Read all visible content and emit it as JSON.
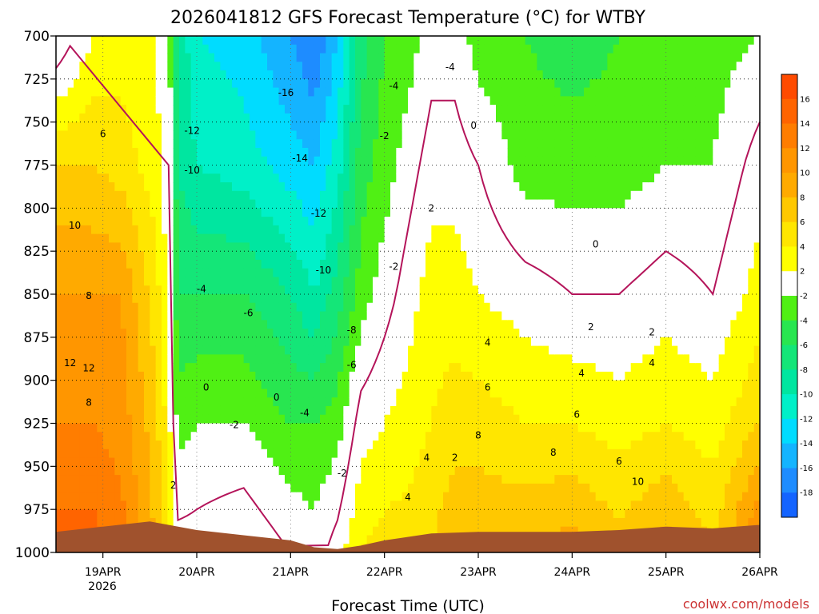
{
  "chart_data": {
    "type": "heatmap",
    "title": "2026041812 GFS Forecast Temperature (°C) for WTBY",
    "xlabel": "Forecast Time (UTC)",
    "ylabel": "",
    "credit": "coolwx.com/models",
    "x_ticks": [
      "19APR",
      "20APR",
      "21APR",
      "22APR",
      "23APR",
      "24APR",
      "25APR",
      "26APR"
    ],
    "x_year": "2026",
    "x_range_days": [
      18.5,
      26.0
    ],
    "y_ticks": [
      700,
      725,
      750,
      775,
      800,
      825,
      850,
      875,
      900,
      925,
      950,
      975,
      1000
    ],
    "y_range_hpa": [
      700,
      1000
    ],
    "colorbar_levels": [
      "16",
      "14",
      "12",
      "10",
      "8",
      "6",
      "4",
      "2",
      "-2",
      "-4",
      "-6",
      "-8",
      "-10",
      "-12",
      "-14",
      "-16",
      "-18"
    ],
    "colorbar_bounds": [
      18,
      16,
      14,
      12,
      10,
      8,
      6,
      4,
      2,
      -2,
      -4,
      -6,
      -8,
      -10,
      -12,
      -14,
      -16,
      -18,
      -20
    ],
    "colors": {
      "-20": "#1464ff",
      "-18": "#1e8cff",
      "-16": "#14b4ff",
      "-14": "#00dcff",
      "-12": "#00f0c8",
      "-10": "#00e6a0",
      "-8": "#14e678",
      "-6": "#28e650",
      "-4": "#50f014",
      "-2": "#ffffff",
      "2": "#ffff00",
      "4": "#ffe600",
      "6": "#ffc800",
      "8": "#ffaa00",
      "10": "#ff9600",
      "12": "#ff7d00",
      "14": "#ff6400",
      "16": "#ff4b00",
      "terrain": "#a0522d",
      "freezing_line": "#b4145a"
    },
    "profiles": [
      {
        "day": 18.5,
        "temps": [
          -2.0,
          6.0,
          10.0,
          12.0,
          15.0
        ]
      },
      {
        "day": 18.9,
        "temps": [
          2.0,
          6.0,
          10.0,
          12.0,
          15.0
        ]
      },
      {
        "day": 19.2,
        "temps": [
          3.0,
          5.0,
          10.0,
          11.0,
          13.0
        ]
      },
      {
        "day": 19.55,
        "temps": [
          3.0,
          3.0,
          5.0,
          7.0,
          8.0
        ]
      },
      {
        "day": 19.7,
        "temps": [
          -1.0,
          0.0,
          2.0,
          3.0,
          4.0
        ]
      },
      {
        "day": 19.8,
        "temps": [
          -8.0,
          -8.0,
          -6.0,
          -3.0,
          1.0
        ]
      },
      {
        "day": 20.0,
        "temps": [
          -12.0,
          -10.0,
          -6.0,
          -2.0,
          1.0
        ]
      },
      {
        "day": 20.5,
        "temps": [
          -13.0,
          -11.0,
          -6.0,
          -2.0,
          2.0
        ]
      },
      {
        "day": 21.0,
        "temps": [
          -16.0,
          -13.0,
          -8.0,
          -4.0,
          0.0
        ]
      },
      {
        "day": 21.25,
        "temps": [
          -18.0,
          -14.0,
          -10.0,
          -4.0,
          -1.0
        ]
      },
      {
        "day": 21.5,
        "temps": [
          -14.0,
          -11.0,
          -7.0,
          -3.0,
          1.0
        ]
      },
      {
        "day": 21.75,
        "temps": [
          -7.0,
          -5.0,
          -3.0,
          1.0,
          4.0
        ]
      },
      {
        "day": 22.0,
        "temps": [
          -4.0,
          -3.0,
          -1.0,
          2.0,
          5.0
        ]
      },
      {
        "day": 22.25,
        "temps": [
          -3.0,
          -1.0,
          1.0,
          3.0,
          5.0
        ]
      },
      {
        "day": 22.5,
        "temps": [
          -1.0,
          1.0,
          3.0,
          4.0,
          6.0
        ]
      },
      {
        "day": 22.75,
        "temps": [
          -1.0,
          1.0,
          3.0,
          5.0,
          8.0
        ]
      },
      {
        "day": 23.0,
        "temps": [
          -3.0,
          0.0,
          2.0,
          5.0,
          8.0
        ]
      },
      {
        "day": 23.5,
        "temps": [
          -4.0,
          -3.0,
          1.0,
          4.0,
          8.0
        ]
      },
      {
        "day": 24.0,
        "temps": [
          -5.0,
          -3.0,
          0.0,
          4.0,
          9.0
        ]
      },
      {
        "day": 24.5,
        "temps": [
          -4.0,
          -3.0,
          0.0,
          3.0,
          7.0
        ]
      },
      {
        "day": 25.0,
        "temps": [
          -3.0,
          -2.0,
          1.0,
          4.0,
          9.0
        ]
      },
      {
        "day": 25.5,
        "temps": [
          -3.0,
          -2.0,
          0.0,
          3.0,
          6.0
        ]
      },
      {
        "day": 26.0,
        "temps": [
          -2.0,
          1.0,
          3.0,
          6.0,
          13.0
        ]
      }
    ],
    "profile_levels_hpa": [
      700,
      775,
      850,
      925,
      1000
    ],
    "terrain_hpa": [
      {
        "day": 18.5,
        "hpa": 988
      },
      {
        "day": 19.0,
        "hpa": 985
      },
      {
        "day": 19.5,
        "hpa": 982
      },
      {
        "day": 20.0,
        "hpa": 987
      },
      {
        "day": 20.5,
        "hpa": 990
      },
      {
        "day": 21.0,
        "hpa": 993
      },
      {
        "day": 21.25,
        "hpa": 997
      },
      {
        "day": 21.5,
        "hpa": 998
      },
      {
        "day": 21.75,
        "hpa": 996
      },
      {
        "day": 22.0,
        "hpa": 993
      },
      {
        "day": 22.5,
        "hpa": 989
      },
      {
        "day": 23.0,
        "hpa": 988
      },
      {
        "day": 23.5,
        "hpa": 988
      },
      {
        "day": 24.0,
        "hpa": 988
      },
      {
        "day": 24.5,
        "hpa": 987
      },
      {
        "day": 25.0,
        "hpa": 985
      },
      {
        "day": 25.5,
        "hpa": 986
      },
      {
        "day": 26.0,
        "hpa": 984
      }
    ],
    "contour_labels": [
      {
        "text": "-16",
        "day": 20.95,
        "hpa": 733
      },
      {
        "text": "-14",
        "day": 21.1,
        "hpa": 771
      },
      {
        "text": "-12",
        "day": 19.95,
        "hpa": 755
      },
      {
        "text": "-12",
        "day": 21.3,
        "hpa": 803
      },
      {
        "text": "-10",
        "day": 19.95,
        "hpa": 778
      },
      {
        "text": "-10",
        "day": 21.35,
        "hpa": 836
      },
      {
        "text": "-8",
        "day": 21.65,
        "hpa": 871
      },
      {
        "text": "-6",
        "day": 20.55,
        "hpa": 861
      },
      {
        "text": "-6",
        "day": 21.65,
        "hpa": 891
      },
      {
        "text": "-4",
        "day": 20.05,
        "hpa": 847
      },
      {
        "text": "-4",
        "day": 21.15,
        "hpa": 919
      },
      {
        "text": "-4",
        "day": 22.1,
        "hpa": 729
      },
      {
        "text": "-4",
        "day": 22.7,
        "hpa": 718
      },
      {
        "text": "-2",
        "day": 20.4,
        "hpa": 926
      },
      {
        "text": "-2",
        "day": 21.55,
        "hpa": 954
      },
      {
        "text": "-2",
        "day": 22.0,
        "hpa": 758
      },
      {
        "text": "-2",
        "day": 22.1,
        "hpa": 834
      },
      {
        "text": "0",
        "day": 20.1,
        "hpa": 904
      },
      {
        "text": "0",
        "day": 20.85,
        "hpa": 910
      },
      {
        "text": "0",
        "day": 22.95,
        "hpa": 752
      },
      {
        "text": "0",
        "day": 24.25,
        "hpa": 821
      },
      {
        "text": "2",
        "day": 22.5,
        "hpa": 800
      },
      {
        "text": "2",
        "day": 19.75,
        "hpa": 961
      },
      {
        "text": "2",
        "day": 22.75,
        "hpa": 945
      },
      {
        "text": "2",
        "day": 24.2,
        "hpa": 869
      },
      {
        "text": "2",
        "day": 24.85,
        "hpa": 872
      },
      {
        "text": "4",
        "day": 22.25,
        "hpa": 968
      },
      {
        "text": "4",
        "day": 22.45,
        "hpa": 945
      },
      {
        "text": "4",
        "day": 23.1,
        "hpa": 878
      },
      {
        "text": "4",
        "day": 24.1,
        "hpa": 896
      },
      {
        "text": "4",
        "day": 24.85,
        "hpa": 890
      },
      {
        "text": "6",
        "day": 19.0,
        "hpa": 757
      },
      {
        "text": "6",
        "day": 23.1,
        "hpa": 904
      },
      {
        "text": "6",
        "day": 24.05,
        "hpa": 920
      },
      {
        "text": "6",
        "day": 24.5,
        "hpa": 947
      },
      {
        "text": "8",
        "day": 18.85,
        "hpa": 851
      },
      {
        "text": "8",
        "day": 18.85,
        "hpa": 913
      },
      {
        "text": "8",
        "day": 23.0,
        "hpa": 932
      },
      {
        "text": "8",
        "day": 23.8,
        "hpa": 942
      },
      {
        "text": "10",
        "day": 18.7,
        "hpa": 810
      },
      {
        "text": "10",
        "day": 24.7,
        "hpa": 959
      },
      {
        "text": "12",
        "day": 18.65,
        "hpa": 890
      },
      {
        "text": "12",
        "day": 18.85,
        "hpa": 893
      }
    ]
  }
}
